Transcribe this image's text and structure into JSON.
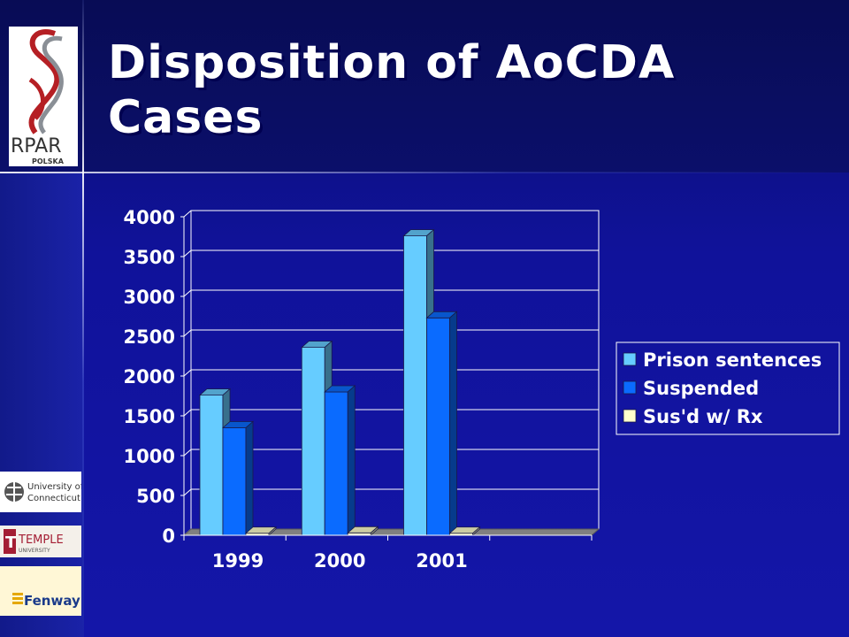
{
  "slide": {
    "title_line1": "Disposition of AoCDA",
    "title_line2": "Cases"
  },
  "logos": {
    "main": "RPAR",
    "main_sub": "POLSKA",
    "uconn": [
      "University of",
      "Connecticut"
    ],
    "temple": "TEMPLE",
    "temple_sub": "UNIVERSITY",
    "fenway": "Fenway"
  },
  "colors": {
    "prison": "#66ccff",
    "suspended": "#0a6bff",
    "susrx": "#ffffcc",
    "background": "#10129a"
  },
  "chart_data": {
    "type": "bar",
    "categories": [
      "1999",
      "2000",
      "2001"
    ],
    "series": [
      {
        "name": "Prison sentences",
        "values": [
          1760,
          2360,
          3760
        ]
      },
      {
        "name": "Suspended",
        "values": [
          1350,
          1800,
          2730
        ]
      },
      {
        "name": "Sus'd w/ Rx",
        "values": [
          25,
          30,
          25
        ]
      }
    ],
    "yticks": [
      "0",
      "500",
      "1000",
      "1500",
      "2000",
      "2500",
      "3000",
      "3500",
      "4000"
    ],
    "ylim": [
      0,
      4000
    ],
    "grid": true,
    "legend_position": "right"
  }
}
